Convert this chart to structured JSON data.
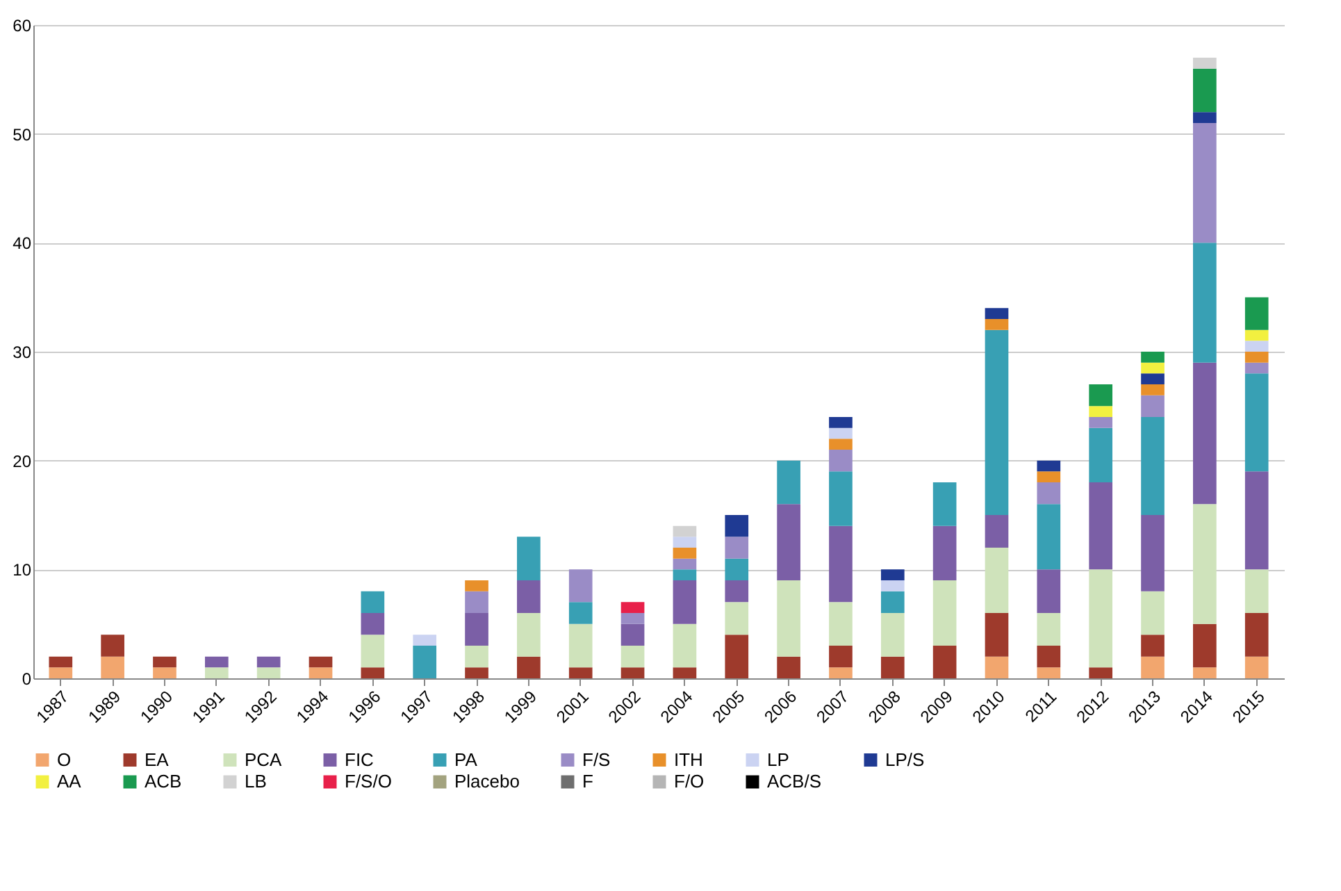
{
  "chart_data": {
    "type": "bar",
    "stacked": true,
    "categories": [
      "1987",
      "1989",
      "1990",
      "1991",
      "1992",
      "1994",
      "1996",
      "1997",
      "1998",
      "1999",
      "2001",
      "2002",
      "2004",
      "2005",
      "2006",
      "2007",
      "2008",
      "2009",
      "2010",
      "2011",
      "2012",
      "2013",
      "2014",
      "2015"
    ],
    "series": [
      {
        "name": "O",
        "color": "#f2a66e",
        "values": [
          1,
          2,
          1,
          null,
          null,
          1,
          null,
          null,
          null,
          null,
          null,
          null,
          null,
          null,
          null,
          1,
          null,
          null,
          2,
          1,
          null,
          2,
          1,
          2
        ]
      },
      {
        "name": "EA",
        "color": "#9e3a2c",
        "values": [
          1,
          2,
          1,
          null,
          null,
          1,
          1,
          null,
          1,
          2,
          1,
          1,
          1,
          4,
          2,
          2,
          2,
          3,
          4,
          2,
          1,
          2,
          4,
          4
        ]
      },
      {
        "name": "PCA",
        "color": "#cfe3bb",
        "values": [
          null,
          null,
          null,
          1,
          1,
          null,
          3,
          null,
          2,
          4,
          4,
          2,
          4,
          3,
          7,
          4,
          4,
          6,
          6,
          3,
          9,
          4,
          11,
          4
        ]
      },
      {
        "name": "FIC",
        "color": "#7b5fa6",
        "values": [
          null,
          null,
          null,
          1,
          1,
          null,
          2,
          null,
          3,
          3,
          null,
          2,
          4,
          2,
          7,
          7,
          null,
          5,
          3,
          4,
          8,
          7,
          13,
          9
        ]
      },
      {
        "name": "PA",
        "color": "#38a0b4",
        "values": [
          null,
          null,
          null,
          null,
          null,
          null,
          2,
          3,
          null,
          4,
          2,
          null,
          1,
          2,
          4,
          5,
          2,
          4,
          17,
          6,
          5,
          9,
          11,
          9
        ]
      },
      {
        "name": "F/S",
        "color": "#9a8cc6",
        "values": [
          null,
          null,
          null,
          null,
          null,
          null,
          null,
          null,
          2,
          null,
          3,
          1,
          1,
          2,
          null,
          2,
          null,
          null,
          null,
          2,
          1,
          2,
          11,
          1
        ]
      },
      {
        "name": "ITH",
        "color": "#e8902a",
        "values": [
          null,
          null,
          null,
          null,
          null,
          null,
          null,
          null,
          1,
          null,
          null,
          null,
          1,
          null,
          null,
          1,
          null,
          null,
          1,
          1,
          null,
          1,
          null,
          1
        ]
      },
      {
        "name": "LP",
        "color": "#cbd3f2",
        "values": [
          null,
          null,
          null,
          null,
          null,
          null,
          null,
          1,
          null,
          null,
          null,
          null,
          1,
          null,
          null,
          1,
          1,
          null,
          null,
          null,
          null,
          null,
          null,
          1
        ]
      },
      {
        "name": "LP/S",
        "color": "#1f3a93",
        "values": [
          null,
          null,
          null,
          null,
          null,
          null,
          null,
          null,
          null,
          null,
          null,
          null,
          null,
          2,
          null,
          1,
          1,
          null,
          1,
          1,
          null,
          1,
          1,
          null
        ]
      },
      {
        "name": "AA",
        "color": "#f2f040",
        "values": [
          null,
          null,
          null,
          null,
          null,
          null,
          null,
          null,
          null,
          null,
          null,
          null,
          null,
          null,
          null,
          null,
          null,
          null,
          null,
          null,
          1,
          1,
          null,
          1
        ]
      },
      {
        "name": "ACB",
        "color": "#1a9a50",
        "values": [
          null,
          null,
          null,
          null,
          null,
          null,
          null,
          null,
          null,
          null,
          null,
          null,
          null,
          null,
          null,
          null,
          null,
          null,
          null,
          null,
          2,
          1,
          4,
          3
        ]
      },
      {
        "name": "LB",
        "color": "#d2d2d2",
        "values": [
          null,
          null,
          null,
          null,
          null,
          null,
          null,
          null,
          null,
          null,
          null,
          null,
          1,
          null,
          null,
          null,
          null,
          null,
          null,
          null,
          null,
          null,
          1,
          null
        ]
      },
      {
        "name": "F/S/O",
        "color": "#e8204a",
        "values": [
          null,
          null,
          null,
          null,
          null,
          null,
          null,
          null,
          null,
          null,
          null,
          1,
          null,
          null,
          null,
          null,
          null,
          null,
          null,
          null,
          null,
          null,
          null,
          null
        ]
      },
      {
        "name": "Placebo",
        "color": "#a3a37f",
        "values": [
          null,
          null,
          null,
          null,
          null,
          null,
          null,
          null,
          null,
          null,
          null,
          null,
          null,
          null,
          null,
          null,
          null,
          null,
          null,
          null,
          null,
          null,
          null,
          null
        ]
      },
      {
        "name": "F",
        "color": "#6e6e6e",
        "values": [
          null,
          null,
          null,
          null,
          null,
          null,
          null,
          null,
          null,
          null,
          null,
          null,
          null,
          null,
          null,
          null,
          null,
          null,
          null,
          null,
          null,
          null,
          null,
          null
        ]
      },
      {
        "name": "F/O",
        "color": "#b5b5b5",
        "values": [
          null,
          null,
          null,
          null,
          null,
          null,
          null,
          null,
          null,
          null,
          null,
          null,
          null,
          null,
          null,
          null,
          null,
          null,
          null,
          null,
          null,
          null,
          null,
          null
        ]
      },
      {
        "name": "ACB/S",
        "color": "#000000",
        "values": [
          null,
          null,
          null,
          null,
          null,
          null,
          null,
          null,
          null,
          null,
          null,
          null,
          null,
          null,
          null,
          null,
          null,
          null,
          null,
          null,
          null,
          null,
          null,
          null
        ]
      }
    ],
    "ylim": [
      0,
      60
    ],
    "yticks": [
      0,
      10,
      20,
      30,
      40,
      50,
      60
    ],
    "grid": "y",
    "legend": "bottom"
  }
}
